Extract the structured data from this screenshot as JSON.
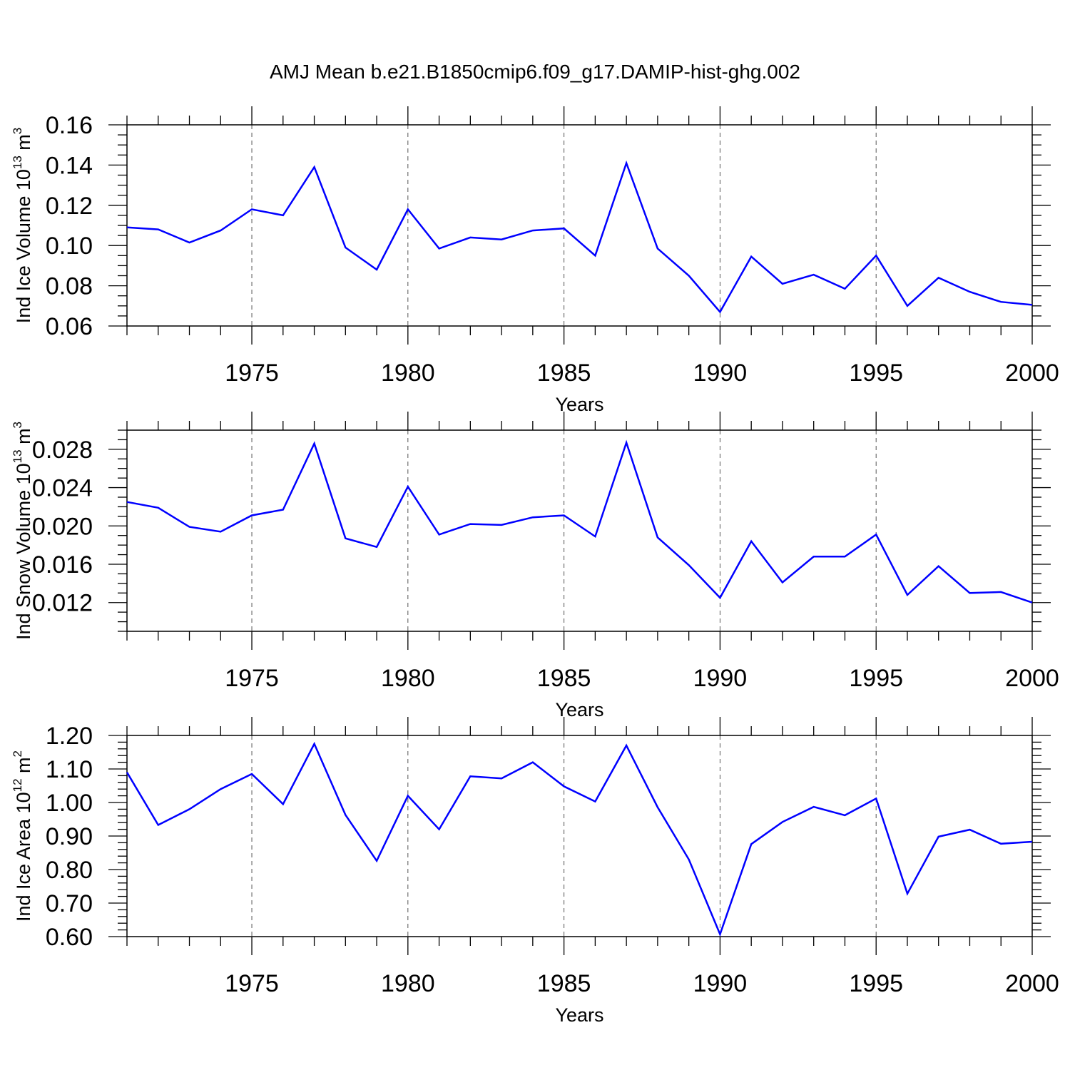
{
  "title": "AMJ Mean b.e21.B1850cmip6.f09_g17.DAMIP-hist-ghg.002",
  "line_color": "#0000ff",
  "chart_data": [
    {
      "type": "line",
      "xlabel": "Years",
      "ylabel_text": "Ind Ice Volume 10",
      "ylabel_exp": "13",
      "ylabel_unit": "m",
      "ylabel_unit_exp": "3",
      "xlim": [
        1971,
        2000
      ],
      "ylim": [
        0.06,
        0.16
      ],
      "xticks": [
        "1975",
        "1980",
        "1985",
        "1990",
        "1995",
        "2000"
      ],
      "yticks": [
        "0.06",
        "0.08",
        "0.10",
        "0.12",
        "0.14",
        "0.16"
      ],
      "grid": "vertical dashed at labeled years",
      "x": [
        1971,
        1972,
        1973,
        1974,
        1975,
        1976,
        1977,
        1978,
        1979,
        1980,
        1981,
        1982,
        1983,
        1984,
        1985,
        1986,
        1987,
        1988,
        1989,
        1990,
        1991,
        1992,
        1993,
        1994,
        1995,
        1996,
        1997,
        1998,
        1999,
        2000
      ],
      "values": [
        0.109,
        0.108,
        0.1015,
        0.1075,
        0.118,
        0.115,
        0.139,
        0.099,
        0.088,
        0.118,
        0.0985,
        0.104,
        0.103,
        0.1075,
        0.1085,
        0.095,
        0.141,
        0.0985,
        0.085,
        0.067,
        0.0945,
        0.081,
        0.0855,
        0.0785,
        0.095,
        0.07,
        0.084,
        0.077,
        0.072,
        0.0705
      ]
    },
    {
      "type": "line",
      "xlabel": "Years",
      "ylabel_text": "Ind Snow Volume 10",
      "ylabel_exp": "13",
      "ylabel_unit": "m",
      "ylabel_unit_exp": "3",
      "xlim": [
        1971,
        2000
      ],
      "ylim": [
        0.009,
        0.03
      ],
      "xticks": [
        "1975",
        "1980",
        "1985",
        "1990",
        "1995",
        "2000"
      ],
      "yticks": [
        "0.012",
        "0.016",
        "0.020",
        "0.024",
        "0.028"
      ],
      "grid": "vertical dashed at labeled years",
      "x": [
        1971,
        1972,
        1973,
        1974,
        1975,
        1976,
        1977,
        1978,
        1979,
        1980,
        1981,
        1982,
        1983,
        1984,
        1985,
        1986,
        1987,
        1988,
        1989,
        1990,
        1991,
        1992,
        1993,
        1994,
        1995,
        1996,
        1997,
        1998,
        1999,
        2000
      ],
      "values": [
        0.0225,
        0.0219,
        0.0199,
        0.0194,
        0.0211,
        0.0217,
        0.0286,
        0.0187,
        0.0178,
        0.0241,
        0.0191,
        0.0202,
        0.0201,
        0.0209,
        0.0211,
        0.0189,
        0.0287,
        0.0188,
        0.0159,
        0.0125,
        0.0184,
        0.0141,
        0.0168,
        0.0168,
        0.0191,
        0.0128,
        0.0158,
        0.013,
        0.0131,
        0.012
      ]
    },
    {
      "type": "line",
      "xlabel": "Years",
      "ylabel_text": "Ind Ice Area 10",
      "ylabel_exp": "12",
      "ylabel_unit": "m",
      "ylabel_unit_exp": "2",
      "xlim": [
        1971,
        2000
      ],
      "ylim": [
        0.6,
        1.2
      ],
      "xticks": [
        "1975",
        "1980",
        "1985",
        "1990",
        "1995",
        "2000"
      ],
      "yticks": [
        "0.60",
        "0.70",
        "0.80",
        "0.90",
        "1.00",
        "1.10",
        "1.20"
      ],
      "grid": "vertical dashed at labeled years",
      "x": [
        1971,
        1972,
        1973,
        1974,
        1975,
        1976,
        1977,
        1978,
        1979,
        1980,
        1981,
        1982,
        1983,
        1984,
        1985,
        1986,
        1987,
        1988,
        1989,
        1990,
        1991,
        1992,
        1993,
        1994,
        1995,
        1996,
        1997,
        1998,
        1999,
        2000
      ],
      "values": [
        1.09,
        0.933,
        0.98,
        1.04,
        1.085,
        0.995,
        1.175,
        0.963,
        0.826,
        1.02,
        0.92,
        1.078,
        1.072,
        1.12,
        1.048,
        1.003,
        1.17,
        0.986,
        0.83,
        0.607,
        0.876,
        0.942,
        0.987,
        0.962,
        1.012,
        0.728,
        0.898,
        0.919,
        0.877,
        0.883
      ]
    }
  ]
}
